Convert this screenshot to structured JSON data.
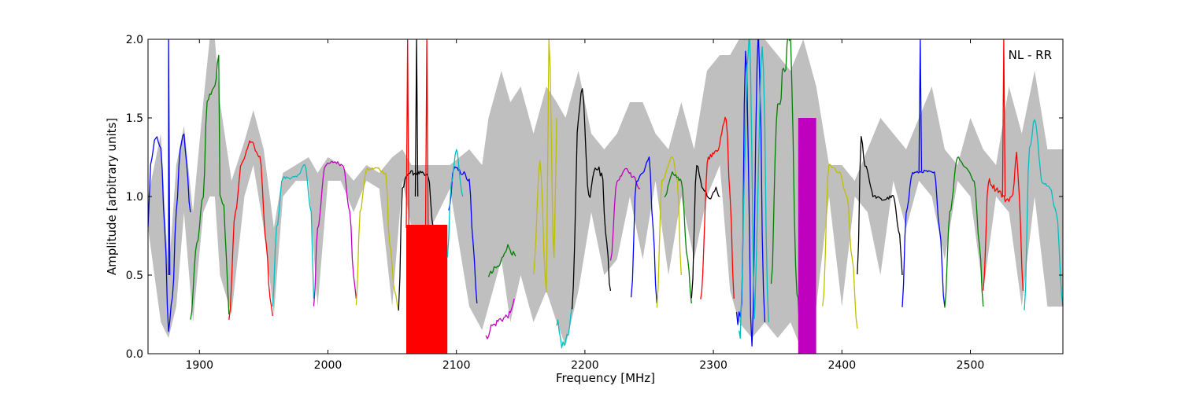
{
  "chart_data": {
    "type": "line",
    "title": "",
    "xlabel": "Frequency [MHz]",
    "ylabel": "Amplitude [arbitrary units]",
    "xlim": [
      1860,
      2572
    ],
    "ylim": [
      0.0,
      2.0
    ],
    "grid": false,
    "legend": "none",
    "annotation": "NL - RR",
    "xticks": [
      1900,
      2000,
      2100,
      2200,
      2300,
      2400,
      2500
    ],
    "yticks": [
      0.0,
      0.5,
      1.0,
      1.5,
      2.0
    ],
    "xtick_labels": [
      "1900",
      "2000",
      "2100",
      "2200",
      "2300",
      "2400",
      "2500"
    ],
    "ytick_labels": [
      "0.0",
      "0.5",
      "1.0",
      "1.5",
      "2.0"
    ],
    "background_envelope": {
      "color": "#bfbfbf",
      "x": [
        1860,
        1870,
        1876,
        1882,
        1888,
        1895,
        1903,
        1908,
        1912,
        1916,
        1925,
        1935,
        1942,
        1950,
        1958,
        1965,
        1975,
        1985,
        1992,
        2000,
        2010,
        2020,
        2030,
        2040,
        2050,
        2058,
        2065,
        2080,
        2095,
        2110,
        2120,
        2125,
        2135,
        2142,
        2150,
        2160,
        2170,
        2178,
        2185,
        2195,
        2205,
        2215,
        2225,
        2235,
        2245,
        2255,
        2265,
        2275,
        2285,
        2295,
        2305,
        2313,
        2320,
        2330,
        2340,
        2350,
        2360,
        2370,
        2380,
        2390,
        2400,
        2410,
        2420,
        2430,
        2440,
        2450,
        2460,
        2470,
        2480,
        2490,
        2500,
        2510,
        2520,
        2530,
        2540,
        2550,
        2560,
        2572
      ],
      "upper": [
        1.0,
        1.4,
        0.5,
        1.2,
        1.45,
        0.9,
        1.6,
        2.0,
        2.0,
        1.6,
        1.1,
        1.35,
        1.55,
        1.3,
        0.8,
        1.15,
        1.2,
        1.25,
        1.15,
        1.25,
        1.2,
        1.1,
        1.2,
        1.15,
        1.25,
        1.3,
        1.2,
        1.2,
        1.2,
        1.3,
        1.2,
        1.5,
        1.8,
        1.6,
        1.7,
        1.4,
        1.7,
        1.6,
        1.5,
        1.8,
        1.4,
        1.3,
        1.4,
        1.6,
        1.6,
        1.4,
        1.3,
        1.6,
        1.3,
        1.8,
        1.9,
        1.9,
        2.0,
        2.0,
        2.0,
        1.9,
        1.8,
        2.0,
        1.7,
        1.2,
        1.2,
        1.1,
        1.3,
        1.5,
        1.4,
        1.3,
        1.5,
        1.7,
        1.3,
        1.2,
        1.5,
        1.3,
        1.2,
        1.7,
        1.4,
        1.8,
        1.3,
        1.3
      ],
      "lower": [
        0.8,
        0.2,
        0.1,
        0.3,
        0.9,
        0.2,
        0.9,
        1.0,
        1.0,
        0.5,
        0.25,
        1.0,
        1.2,
        0.8,
        0.25,
        1.0,
        1.1,
        1.1,
        0.3,
        1.1,
        1.1,
        0.9,
        1.1,
        1.05,
        0.3,
        1.1,
        0.8,
        0.8,
        1.05,
        0.3,
        0.15,
        0.3,
        0.6,
        0.2,
        0.5,
        0.2,
        0.4,
        0.2,
        0.05,
        0.4,
        0.9,
        0.5,
        0.6,
        1.0,
        0.6,
        1.1,
        0.5,
        1.0,
        0.6,
        1.0,
        1.2,
        0.4,
        0.2,
        0.1,
        0.2,
        0.1,
        0.2,
        0.0,
        0.3,
        1.0,
        0.3,
        1.0,
        0.9,
        0.5,
        1.1,
        0.8,
        1.1,
        1.0,
        0.6,
        1.1,
        1.0,
        0.4,
        1.0,
        0.9,
        0.3,
        1.0,
        0.3,
        0.3
      ]
    },
    "series": [
      {
        "color": "#0000ff",
        "noise": 0.015,
        "x": [
          1860,
          1862,
          1866,
          1870,
          1873,
          1876,
          1879,
          1882,
          1885,
          1888,
          1890,
          1893
        ],
        "y": [
          0.8,
          1.2,
          1.38,
          1.3,
          0.8,
          0.15,
          0.35,
          0.9,
          1.3,
          1.4,
          1.2,
          0.9
        ]
      },
      {
        "color": "#0000ff",
        "noise": 0,
        "x": [
          1876,
          1876,
          1877
        ],
        "y": [
          0.5,
          2.0,
          0.5
        ]
      },
      {
        "color": "#008000",
        "noise": 0.01,
        "x": [
          1893,
          1898,
          1903,
          1906,
          1908,
          1912,
          1915,
          1916,
          1919,
          1921,
          1923
        ],
        "y": [
          0.22,
          0.7,
          1.0,
          1.6,
          1.65,
          1.7,
          1.9,
          1.0,
          0.95,
          0.6,
          0.25
        ]
      },
      {
        "color": "#ff0000",
        "noise": 0.01,
        "x": [
          1923,
          1928,
          1933,
          1940,
          1947,
          1952,
          1955,
          1957
        ],
        "y": [
          0.22,
          0.9,
          1.22,
          1.35,
          1.25,
          0.7,
          0.35,
          0.24
        ]
      },
      {
        "color": "#00bfbf",
        "noise": 0.01,
        "x": [
          1957,
          1960,
          1965,
          1975,
          1982,
          1987,
          1989
        ],
        "y": [
          0.3,
          0.8,
          1.12,
          1.12,
          1.2,
          0.9,
          0.35
        ]
      },
      {
        "color": "#bf00bf",
        "noise": 0.01,
        "x": [
          1989,
          1992,
          1998,
          2005,
          2012,
          2017,
          2020,
          2022
        ],
        "y": [
          0.3,
          0.8,
          1.2,
          1.22,
          1.2,
          0.9,
          0.5,
          0.35
        ]
      },
      {
        "color": "#bfbf00",
        "noise": 0.01,
        "x": [
          2022,
          2025,
          2030,
          2038,
          2045,
          2048,
          2052,
          2055
        ],
        "y": [
          0.3,
          0.9,
          1.17,
          1.18,
          1.15,
          0.7,
          0.4,
          0.28
        ]
      },
      {
        "color": "#000000",
        "noise": 0.015,
        "x": [
          2055,
          2058,
          2062,
          2070,
          2078,
          2082,
          2084
        ],
        "y": [
          0.28,
          1.05,
          1.15,
          1.15,
          1.13,
          0.8,
          0.3
        ]
      },
      {
        "color": "#000000",
        "noise": 0,
        "x": [
          2068,
          2069,
          2070
        ],
        "y": [
          1.0,
          2.0,
          1.0
        ]
      },
      {
        "color": "#ff0000",
        "fill": true,
        "x": [
          2061,
          2093
        ],
        "y": [
          0.0,
          0.82
        ]
      },
      {
        "color": "#ff0000",
        "noise": 0,
        "x": [
          2061,
          2062,
          2063
        ],
        "y": [
          0.8,
          2.0,
          0.8
        ]
      },
      {
        "color": "#ff0000",
        "noise": 0,
        "x": [
          2076,
          2077,
          2078
        ],
        "y": [
          0.8,
          2.0,
          0.8
        ]
      },
      {
        "color": "#0000ff",
        "noise": 0.015,
        "x": [
          2094,
          2098,
          2105,
          2110,
          2113,
          2116
        ],
        "y": [
          0.9,
          1.18,
          1.15,
          1.1,
          0.7,
          0.32
        ]
      },
      {
        "color": "#00bfbf",
        "noise": 0.02,
        "x": [
          2093,
          2096,
          2100,
          2105
        ],
        "y": [
          0.6,
          1.1,
          1.3,
          1.0
        ]
      },
      {
        "color": "#bf00bf",
        "noise": 0.02,
        "x": [
          2123,
          2128,
          2135,
          2142,
          2145
        ],
        "y": [
          0.1,
          0.18,
          0.22,
          0.25,
          0.35
        ]
      },
      {
        "color": "#008000",
        "noise": 0.02,
        "x": [
          2125,
          2132,
          2140,
          2146
        ],
        "y": [
          0.5,
          0.55,
          0.68,
          0.62
        ]
      },
      {
        "color": "#bfbf00",
        "noise": 0.03,
        "x": [
          2160,
          2165,
          2170,
          2172,
          2176,
          2178
        ],
        "y": [
          0.5,
          1.2,
          0.4,
          2.0,
          0.6,
          1.5
        ]
      },
      {
        "color": "#00bfbf",
        "noise": 0.03,
        "x": [
          2178,
          2183,
          2187,
          2190
        ],
        "y": [
          0.2,
          0.05,
          0.1,
          0.3
        ]
      },
      {
        "color": "#000000",
        "noise": 0.03,
        "x": [
          2190,
          2195,
          2198,
          2203,
          2208,
          2213,
          2217,
          2220
        ],
        "y": [
          0.3,
          1.5,
          1.7,
          1.0,
          1.2,
          1.15,
          0.7,
          0.4
        ]
      },
      {
        "color": "#bf00bf",
        "noise": 0.01,
        "x": [
          2220,
          2225,
          2232,
          2238,
          2243
        ],
        "y": [
          0.6,
          1.1,
          1.18,
          1.12,
          1.05
        ]
      },
      {
        "color": "#0000ff",
        "noise": 0.01,
        "x": [
          2236,
          2240,
          2245,
          2250,
          2253,
          2256
        ],
        "y": [
          0.35,
          1.1,
          1.15,
          1.25,
          0.8,
          0.32
        ]
      },
      {
        "color": "#bfbf00",
        "noise": 0.01,
        "x": [
          2256,
          2260,
          2268,
          2272,
          2275
        ],
        "y": [
          0.3,
          1.1,
          1.25,
          1.1,
          0.5
        ]
      },
      {
        "color": "#008000",
        "noise": 0.01,
        "x": [
          2262,
          2268,
          2275,
          2280,
          2283
        ],
        "y": [
          1.0,
          1.15,
          1.1,
          0.6,
          0.32
        ]
      },
      {
        "color": "#000000",
        "noise": 0.01,
        "x": [
          2283,
          2287,
          2292,
          2297,
          2302,
          2305
        ],
        "y": [
          0.35,
          1.2,
          1.05,
          0.98,
          1.05,
          1.0
        ]
      },
      {
        "color": "#ff0000",
        "noise": 0.015,
        "x": [
          2290,
          2296,
          2303,
          2310,
          2313,
          2316
        ],
        "y": [
          0.35,
          1.25,
          1.3,
          1.5,
          1.0,
          0.35
        ]
      },
      {
        "color": "#0000ff",
        "noise": 0.08,
        "x": [
          2318,
          2322,
          2325,
          2330,
          2335,
          2340
        ],
        "y": [
          0.2,
          0.3,
          2.0,
          0.1,
          2.0,
          0.2
        ]
      },
      {
        "color": "#00bfbf",
        "noise": 0.08,
        "x": [
          2320,
          2328,
          2332,
          2338,
          2343
        ],
        "y": [
          0.1,
          2.0,
          0.3,
          2.0,
          0.2
        ]
      },
      {
        "color": "#008000",
        "noise": 0.1,
        "x": [
          2345,
          2350,
          2360,
          2365,
          2372,
          2378
        ],
        "y": [
          0.5,
          1.6,
          2.0,
          0.3,
          0.1,
          0.0
        ]
      },
      {
        "color": "#bf00bf",
        "fill": true,
        "x": [
          2366,
          2380
        ],
        "y": [
          0.0,
          1.5
        ]
      },
      {
        "color": "#bfbf00",
        "noise": 0.01,
        "x": [
          2385,
          2390,
          2398,
          2404,
          2408,
          2412
        ],
        "y": [
          0.3,
          1.2,
          1.15,
          1.0,
          0.6,
          0.16
        ]
      },
      {
        "color": "#000000",
        "noise": 0.01,
        "x": [
          2412,
          2415,
          2418,
          2425,
          2432,
          2440,
          2445,
          2447
        ],
        "y": [
          0.5,
          1.38,
          1.2,
          1.0,
          0.98,
          1.0,
          0.75,
          0.5
        ]
      },
      {
        "color": "#0000ff",
        "noise": 0.008,
        "x": [
          2447,
          2450,
          2455,
          2465,
          2472,
          2476,
          2480
        ],
        "y": [
          0.3,
          0.9,
          1.15,
          1.16,
          1.15,
          0.8,
          0.3
        ]
      },
      {
        "color": "#0000ff",
        "noise": 0,
        "x": [
          2460,
          2461,
          2462
        ],
        "y": [
          1.16,
          2.0,
          1.16
        ]
      },
      {
        "color": "#008000",
        "noise": 0.008,
        "x": [
          2480,
          2484,
          2490,
          2497,
          2503,
          2507,
          2510
        ],
        "y": [
          0.3,
          0.9,
          1.25,
          1.18,
          1.1,
          0.7,
          0.3
        ]
      },
      {
        "color": "#ff0000",
        "noise": 0.02,
        "x": [
          2510,
          2514,
          2520,
          2528,
          2533,
          2536,
          2538,
          2541
        ],
        "y": [
          0.4,
          1.1,
          1.05,
          0.98,
          1.0,
          1.3,
          1.0,
          0.4
        ]
      },
      {
        "color": "#ff0000",
        "noise": 0,
        "x": [
          2525,
          2526,
          2527
        ],
        "y": [
          1.0,
          2.0,
          1.0
        ]
      },
      {
        "color": "#00bfbf",
        "noise": 0.015,
        "x": [
          2542,
          2546,
          2550,
          2556,
          2562,
          2567,
          2572
        ],
        "y": [
          0.27,
          1.3,
          1.5,
          1.1,
          1.05,
          0.9,
          0.3
        ]
      }
    ]
  }
}
